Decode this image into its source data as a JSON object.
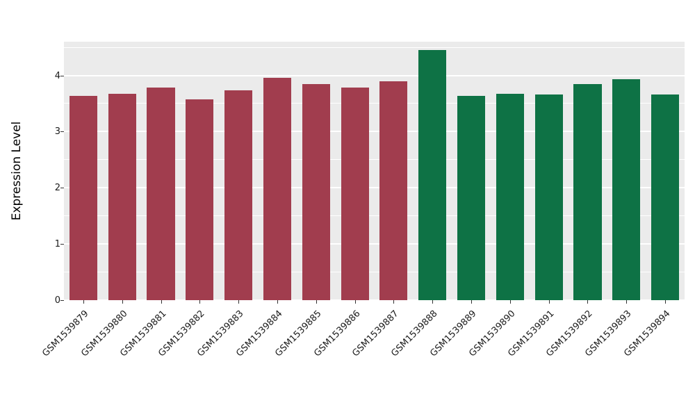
{
  "chart_data": {
    "type": "bar",
    "title": "",
    "xlabel": "",
    "ylabel": "Expression Level",
    "ylim": [
      0,
      4.6
    ],
    "yticks": [
      0,
      1,
      2,
      3,
      4
    ],
    "yticks_minor": [
      0.5,
      1.5,
      2.5,
      3.5,
      4.5
    ],
    "grid": "on",
    "legend_position": "none",
    "panel_background": "#EBEBEB",
    "grid_color": "#FFFFFF",
    "categories": [
      "GSM1539879",
      "GSM1539880",
      "GSM1539881",
      "GSM1539882",
      "GSM1539883",
      "GSM1539884",
      "GSM1539885",
      "GSM1539886",
      "GSM1539887",
      "GSM1539888",
      "GSM1539889",
      "GSM1539890",
      "GSM1539891",
      "GSM1539892",
      "GSM1539893",
      "GSM1539894"
    ],
    "values": [
      3.64,
      3.67,
      3.79,
      3.58,
      3.74,
      3.96,
      3.84,
      3.79,
      3.89,
      4.45,
      3.64,
      3.67,
      3.66,
      3.84,
      3.93,
      3.66
    ],
    "bar_colors": [
      "#A13D4E",
      "#A13D4E",
      "#A13D4E",
      "#A13D4E",
      "#A13D4E",
      "#A13D4E",
      "#A13D4E",
      "#A13D4E",
      "#A13D4E",
      "#0E7245",
      "#0E7245",
      "#0E7245",
      "#0E7245",
      "#0E7245",
      "#0E7245",
      "#0E7245"
    ],
    "group_colors": {
      "left_group": "#A13D4E",
      "right_group": "#0E7245"
    }
  }
}
